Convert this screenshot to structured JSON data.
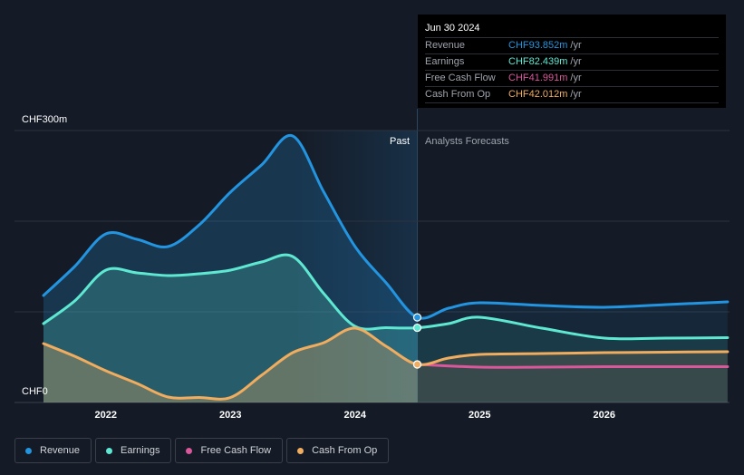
{
  "chart_data": {
    "type": "area",
    "y_axis": {
      "top_label": "CHF300m",
      "bottom_label": "CHF0",
      "ylim": [
        0,
        300
      ]
    },
    "x_ticks": [
      "2022",
      "2023",
      "2024",
      "2025",
      "2026"
    ],
    "regions": {
      "past": "Past",
      "forecast": "Analysts Forecasts"
    },
    "series": [
      {
        "name": "Revenue",
        "color": "#2394df",
        "points": [
          [
            2021.5,
            118
          ],
          [
            2021.75,
            150
          ],
          [
            2022.0,
            186
          ],
          [
            2022.25,
            180
          ],
          [
            2022.5,
            172
          ],
          [
            2022.75,
            196
          ],
          [
            2023.0,
            232
          ],
          [
            2023.25,
            262
          ],
          [
            2023.5,
            294
          ],
          [
            2023.75,
            232
          ],
          [
            2024.0,
            172
          ],
          [
            2024.25,
            132
          ],
          [
            2024.5,
            93.852
          ],
          [
            2024.75,
            104
          ],
          [
            2025.0,
            110
          ],
          [
            2025.5,
            107
          ],
          [
            2026.0,
            105
          ],
          [
            2026.5,
            108
          ],
          [
            2026.99,
            111
          ]
        ]
      },
      {
        "name": "Earnings",
        "color": "#5ee8d2",
        "points": [
          [
            2021.5,
            87
          ],
          [
            2021.75,
            112
          ],
          [
            2022.0,
            146
          ],
          [
            2022.25,
            143
          ],
          [
            2022.5,
            140
          ],
          [
            2022.75,
            142
          ],
          [
            2023.0,
            146
          ],
          [
            2023.25,
            155
          ],
          [
            2023.5,
            161
          ],
          [
            2023.75,
            120
          ],
          [
            2024.0,
            84
          ],
          [
            2024.25,
            82.5
          ],
          [
            2024.5,
            82.439
          ],
          [
            2024.75,
            87
          ],
          [
            2025.0,
            94
          ],
          [
            2025.5,
            82
          ],
          [
            2026.0,
            71
          ],
          [
            2026.5,
            71
          ],
          [
            2026.99,
            71.5
          ]
        ]
      },
      {
        "name": "Free Cash Flow",
        "color": "#d9579a",
        "points": [
          [
            2024.5,
            41.991
          ],
          [
            2025.0,
            39
          ],
          [
            2025.5,
            39
          ],
          [
            2026.0,
            39.5
          ],
          [
            2026.5,
            39.5
          ],
          [
            2026.99,
            39.5
          ]
        ]
      },
      {
        "name": "Cash From Op",
        "color": "#f0ac5f",
        "points": [
          [
            2021.5,
            65
          ],
          [
            2021.75,
            51
          ],
          [
            2022.0,
            35
          ],
          [
            2022.25,
            21
          ],
          [
            2022.5,
            6
          ],
          [
            2022.75,
            5.5
          ],
          [
            2023.0,
            5.5
          ],
          [
            2023.25,
            30
          ],
          [
            2023.5,
            55
          ],
          [
            2023.75,
            66
          ],
          [
            2024.0,
            82
          ],
          [
            2024.25,
            62
          ],
          [
            2024.5,
            42.012
          ],
          [
            2024.75,
            49
          ],
          [
            2025.0,
            53
          ],
          [
            2025.5,
            54
          ],
          [
            2026.0,
            55
          ],
          [
            2026.5,
            55.5
          ],
          [
            2026.99,
            56
          ]
        ]
      }
    ],
    "tooltip": {
      "date": "Jun 30 2024",
      "rows": [
        {
          "label": "Revenue",
          "value": "CHF93.852m",
          "unit": "/yr",
          "color": "#2394df"
        },
        {
          "label": "Earnings",
          "value": "CHF82.439m",
          "unit": "/yr",
          "color": "#5ee8d2"
        },
        {
          "label": "Free Cash Flow",
          "value": "CHF41.991m",
          "unit": "/yr",
          "color": "#d9579a"
        },
        {
          "label": "Cash From Op",
          "value": "CHF42.012m",
          "unit": "/yr",
          "color": "#f0ac5f"
        }
      ]
    }
  },
  "legend": [
    {
      "label": "Revenue",
      "color": "#2394df"
    },
    {
      "label": "Earnings",
      "color": "#5ee8d2"
    },
    {
      "label": "Free Cash Flow",
      "color": "#d9579a"
    },
    {
      "label": "Cash From Op",
      "color": "#f0ac5f"
    }
  ]
}
